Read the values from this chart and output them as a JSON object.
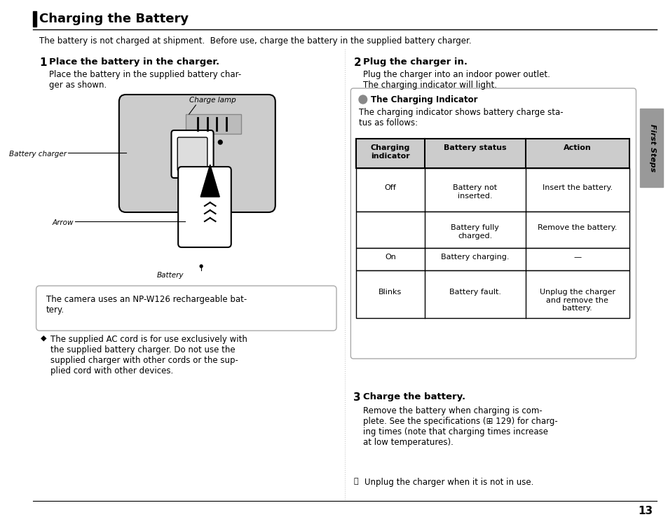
{
  "bg_color": "#ffffff",
  "page_number": "13",
  "title": "Charging the Battery",
  "intro_text": "The battery is not charged at shipment.  Before use, charge the battery in the supplied battery charger.",
  "section1_num": "1",
  "section1_heading": "Place the battery in the charger.",
  "section1_body": "Place the battery in the supplied battery char-\nger as shown.",
  "section2_num": "2",
  "section2_heading": "Plug the charger in.",
  "section2_body": "Plug the charger into an indoor power outlet.\nThe charging indicator will light.",
  "section3_num": "3",
  "section3_heading": "Charge the battery.",
  "section3_body": "Remove the battery when charging is com-\nplete. See the specifications (⊞ 129) for charg-\ning times (note that charging times increase\nat low temperatures).",
  "note_circle": "Unplug the charger when it is not in use.",
  "diagram_labels": {
    "charge_lamp": "Charge lamp",
    "battery_charger": "Battery charger",
    "arrow_label": "Arrow",
    "battery": "Battery"
  },
  "note_box_text": "The camera uses an NP-W126 rechargeable bat-\ntery.",
  "tip_text": "The supplied AC cord is for use exclusively with\nthe supplied battery charger. Do not use the\nsupplied charger with other cords or the sup-\nplied cord with other devices.",
  "indicator_title": "The Charging Indicator",
  "indicator_desc": "The charging indicator shows battery charge sta-\ntus as follows:",
  "table_headers": [
    "Charging\nindicator",
    "Battery status",
    "Action"
  ],
  "table_rows": [
    [
      "Off",
      "Battery not\ninserted.",
      "Insert the battery."
    ],
    [
      "",
      "Battery fully\ncharged.",
      "Remove the battery."
    ],
    [
      "On",
      "Battery charging.",
      "—"
    ],
    [
      "Blinks",
      "Battery fault.",
      "Unplug the charger\nand remove the\nbattery."
    ]
  ],
  "sidebar_text": "First Steps",
  "sidebar_color": "#999999"
}
